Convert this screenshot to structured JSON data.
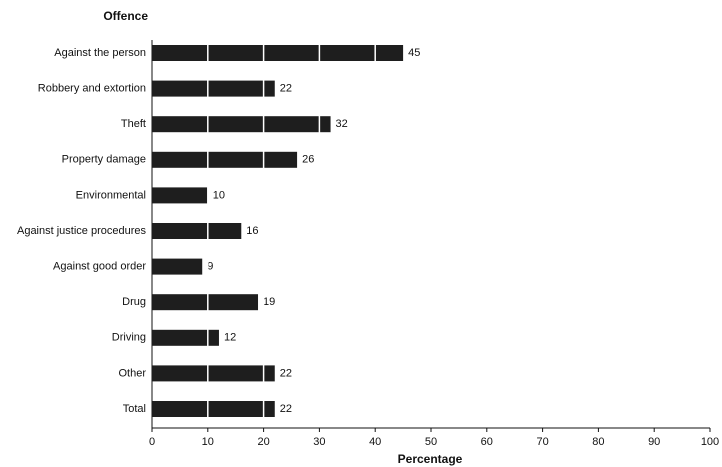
{
  "chart_data": {
    "type": "bar",
    "orientation": "horizontal",
    "y_axis_label": "Offence",
    "x_axis_label": "Percentage",
    "categories": [
      "Against the person",
      "Robbery and extortion",
      "Theft",
      "Property damage",
      "Environmental",
      "Against justice procedures",
      "Against good order",
      "Drug",
      "Driving",
      "Other",
      "Total"
    ],
    "values": [
      45,
      22,
      32,
      26,
      10,
      16,
      9,
      19,
      12,
      22,
      22
    ],
    "color": "#1e1e1e",
    "xlim": [
      0,
      100
    ],
    "xticks": [
      0,
      10,
      20,
      30,
      40,
      50,
      60,
      70,
      80,
      90,
      100
    ],
    "grid": true
  }
}
